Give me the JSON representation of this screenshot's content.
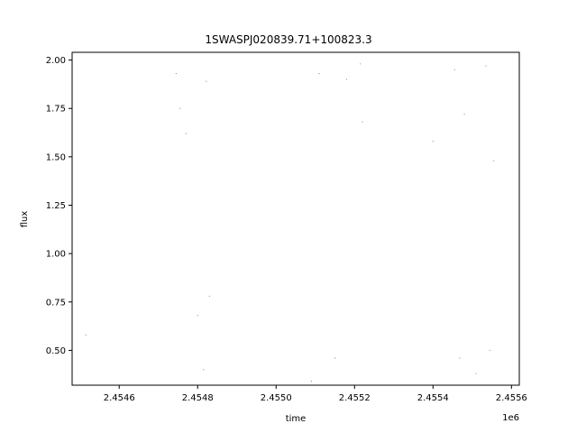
{
  "chart_data": {
    "type": "scatter",
    "title": "1SWASPJ020839.71+100823.3",
    "xlabel": "time",
    "ylabel": "flux",
    "x_offset_label": "1e6",
    "xlim": [
      2.45448,
      2.45562
    ],
    "ylim": [
      0.32,
      2.04
    ],
    "x_ticks": [
      2.4546,
      2.4548,
      2.455,
      2.4552,
      2.4554,
      2.4556
    ],
    "x_tick_labels": [
      "2.4546",
      "2.4548",
      "2.4550",
      "2.4552",
      "2.4554",
      "2.4556"
    ],
    "y_ticks": [
      0.5,
      0.75,
      1.0,
      1.25,
      1.5,
      1.75,
      2.0
    ],
    "y_tick_labels": [
      "0.50",
      "0.75",
      "1.00",
      "1.25",
      "1.50",
      "1.75",
      "2.00"
    ],
    "grid": false,
    "legend": "none",
    "marker_color": "#1f77b4",
    "series": [
      {
        "x": [
          2.454515,
          2.454745,
          2.454755,
          2.45477,
          2.4548,
          2.454815,
          2.454822,
          2.45483,
          2.45509,
          2.45511,
          2.45515,
          2.45518,
          2.455215,
          2.45522,
          2.4554,
          2.455455,
          2.455468,
          2.45548,
          2.45551,
          2.455535,
          2.455545,
          2.455555
        ],
        "y": [
          0.58,
          1.93,
          1.75,
          1.62,
          0.68,
          0.4,
          1.89,
          0.78,
          0.34,
          1.93,
          0.46,
          1.9,
          1.98,
          1.68,
          1.58,
          1.95,
          0.46,
          1.72,
          0.38,
          1.97,
          0.5,
          1.48
        ]
      }
    ]
  }
}
